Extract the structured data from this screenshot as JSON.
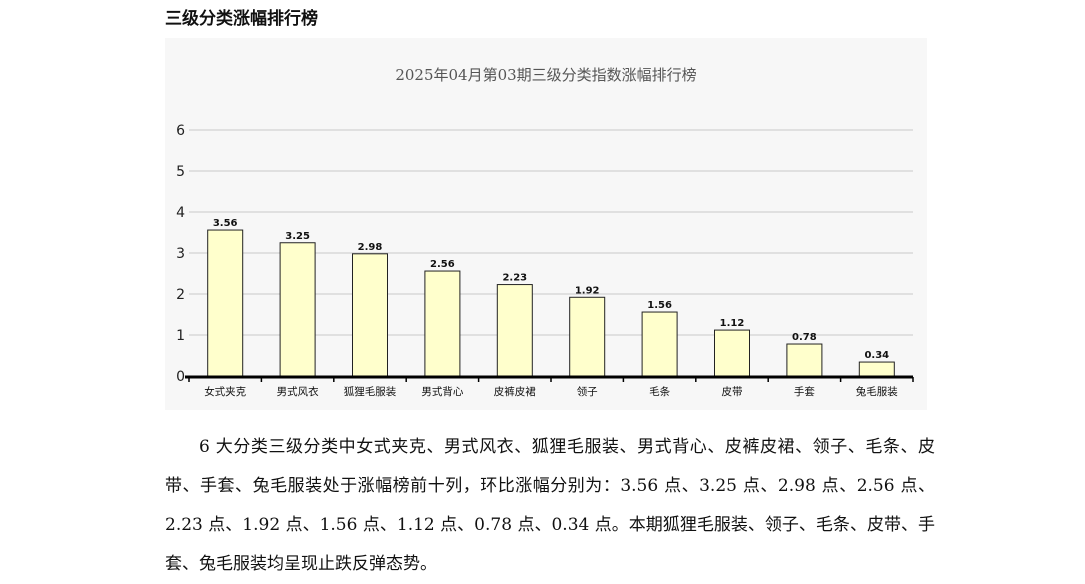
{
  "section_heading": "三级分类涨幅排行榜",
  "chart_data": {
    "type": "bar",
    "title": "2025年04月第03期三级分类指数涨幅排行榜",
    "categories": [
      "女式夹克",
      "男式风衣",
      "狐狸毛服装",
      "男式背心",
      "皮裤皮裙",
      "领子",
      "毛条",
      "皮带",
      "手套",
      "兔毛服装"
    ],
    "values": [
      3.56,
      3.25,
      2.98,
      2.56,
      2.23,
      1.92,
      1.56,
      1.12,
      0.78,
      0.34
    ],
    "value_labels": [
      "3.56",
      "3.25",
      "2.98",
      "2.56",
      "2.23",
      "1.92",
      "1.56",
      "1.12",
      "0.78",
      "0.34"
    ],
    "ylim": [
      0,
      6
    ],
    "yticks": [
      "0",
      "1",
      "2",
      "3",
      "4",
      "5",
      "6"
    ],
    "xlabel": "",
    "ylabel": "",
    "grid": true,
    "bar_color": "#ffffcc",
    "bar_stroke": "#222222"
  },
  "paragraph": "6 大分类三级分类中女式夹克、男式风衣、狐狸毛服装、男式背心、皮裤皮裙、领子、毛条、皮带、手套、兔毛服装处于涨幅榜前十列，环比涨幅分别为：3.56 点、3.25 点、2.98 点、2.56 点、2.23 点、1.92 点、1.56 点、1.12 点、0.78 点、0.34 点。本期狐狸毛服装、领子、毛条、皮带、手套、兔毛服装均呈现止跌反弹态势。"
}
